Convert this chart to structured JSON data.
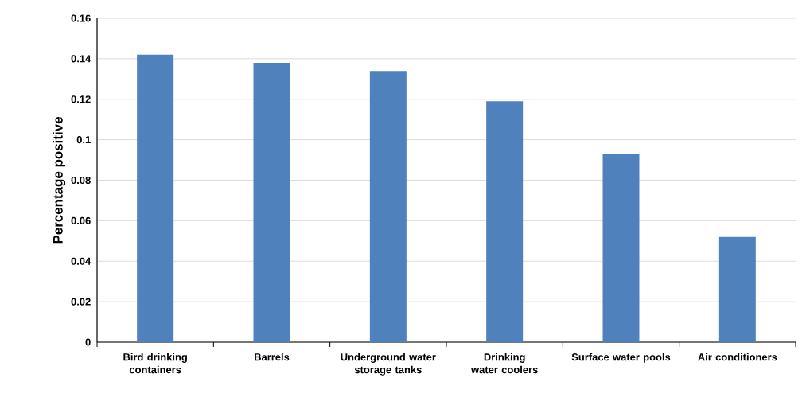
{
  "chart_data": {
    "type": "bar",
    "ylabel": "Percentage positive",
    "categories": [
      "Bird drinking containers",
      "Barrels",
      "Underground water storage tanks",
      "Drinking water coolers",
      "Surface water pools",
      "Air conditioners"
    ],
    "values": [
      0.142,
      0.138,
      0.134,
      0.119,
      0.093,
      0.052
    ],
    "color": "#4f81bd",
    "ylim": [
      0,
      0.16
    ],
    "yticks": [
      0,
      0.02,
      0.04,
      0.06,
      0.08,
      0.1,
      0.12,
      0.14,
      0.16
    ],
    "grid": "y"
  }
}
